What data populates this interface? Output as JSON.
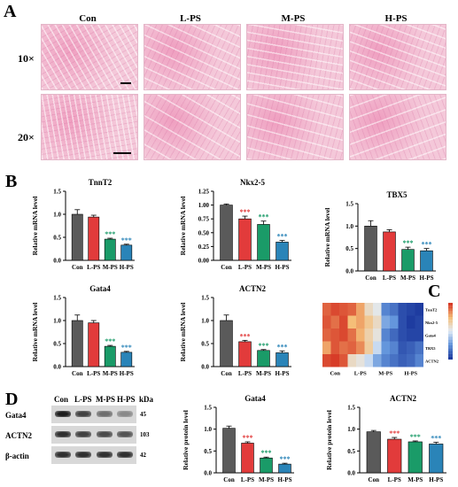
{
  "panel_labels": {
    "a": "A",
    "b": "B",
    "c": "C",
    "d": "D"
  },
  "panelA": {
    "groups": [
      "Con",
      "L-PS",
      "M-PS",
      "H-PS"
    ],
    "rows": [
      "10×",
      "20×"
    ]
  },
  "colors": {
    "Con": "#5a5a5a",
    "L-PS": "#e23b3b",
    "M-PS": "#1a9b68",
    "H-PS": "#2a84b8"
  },
  "significance": "***",
  "chart_data": [
    {
      "type": "bar",
      "title": "TnnT2",
      "ylabel": "Relative mRNA level",
      "categories": [
        "Con",
        "L-PS",
        "M-PS",
        "H-PS"
      ],
      "values": [
        1.0,
        0.94,
        0.46,
        0.33
      ],
      "errors": [
        0.1,
        0.04,
        0.02,
        0.02
      ],
      "sig": [
        "",
        "",
        "***",
        "***"
      ],
      "ylim": [
        0,
        1.5
      ],
      "yticks": [
        "0.0",
        "0.5",
        "1.0",
        "1.5"
      ]
    },
    {
      "type": "bar",
      "title": "Nkx2-5",
      "ylabel": "Relative mRNA level",
      "categories": [
        "Con",
        "L-PS",
        "M-PS",
        "H-PS"
      ],
      "values": [
        1.0,
        0.75,
        0.65,
        0.33
      ],
      "errors": [
        0.02,
        0.05,
        0.06,
        0.03
      ],
      "sig": [
        "",
        "***",
        "***",
        "***"
      ],
      "ylim": [
        0,
        1.25
      ],
      "yticks": [
        "0.00",
        "0.25",
        "0.50",
        "0.75",
        "1.00",
        "1.25"
      ]
    },
    {
      "type": "bar",
      "title": "TBX5",
      "ylabel": "Relative mRNA level",
      "categories": [
        "Con",
        "L-PS",
        "M-PS",
        "H-PS"
      ],
      "values": [
        1.0,
        0.87,
        0.48,
        0.45
      ],
      "errors": [
        0.12,
        0.05,
        0.05,
        0.05
      ],
      "sig": [
        "",
        "",
        "***",
        "***"
      ],
      "ylim": [
        0,
        1.5
      ],
      "yticks": [
        "0.0",
        "0.5",
        "1.0",
        "1.5"
      ]
    },
    {
      "type": "bar",
      "title": "Gata4",
      "ylabel": "Relative mRNA level",
      "categories": [
        "Con",
        "L-PS",
        "M-PS",
        "H-PS"
      ],
      "values": [
        1.0,
        0.95,
        0.44,
        0.31
      ],
      "errors": [
        0.12,
        0.05,
        0.02,
        0.02
      ],
      "sig": [
        "",
        "",
        "***",
        "***"
      ],
      "ylim": [
        0,
        1.5
      ],
      "yticks": [
        "0.0",
        "0.5",
        "1.0",
        "1.5"
      ]
    },
    {
      "type": "bar",
      "title": "ACTN2",
      "ylabel": "Relative mRNA level",
      "categories": [
        "Con",
        "L-PS",
        "M-PS",
        "H-PS"
      ],
      "values": [
        1.0,
        0.54,
        0.35,
        0.3
      ],
      "errors": [
        0.12,
        0.03,
        0.02,
        0.04
      ],
      "sig": [
        "",
        "***",
        "***",
        "***"
      ],
      "ylim": [
        0,
        1.5
      ],
      "yticks": [
        "0.0",
        "0.5",
        "1.0",
        "1.5"
      ]
    },
    {
      "type": "bar",
      "title": "Gata4",
      "ylabel": "Relative protein level",
      "categories": [
        "Con",
        "L-PS",
        "M-PS",
        "H-PS"
      ],
      "values": [
        1.02,
        0.68,
        0.34,
        0.2
      ],
      "errors": [
        0.05,
        0.03,
        0.02,
        0.02
      ],
      "sig": [
        "",
        "***",
        "***",
        "***"
      ],
      "ylim": [
        0,
        1.5
      ],
      "yticks": [
        "0.0",
        "0.5",
        "1.0",
        "1.5"
      ]
    },
    {
      "type": "bar",
      "title": "ACTN2",
      "ylabel": "Relative protein level",
      "categories": [
        "Con",
        "L-PS",
        "M-PS",
        "H-PS"
      ],
      "values": [
        0.94,
        0.77,
        0.71,
        0.66
      ],
      "errors": [
        0.03,
        0.04,
        0.02,
        0.04
      ],
      "sig": [
        "",
        "***",
        "***",
        "***"
      ],
      "ylim": [
        0,
        1.5
      ],
      "yticks": [
        "0.0",
        "0.5",
        "1.0",
        "1.5"
      ]
    },
    {
      "type": "heatmap",
      "rows": [
        "TnnT2",
        "Nkx2-5",
        "Gata4",
        "TBX5",
        "ACTN2"
      ],
      "x_labels": [
        "Con",
        "L-PS",
        "M-PS",
        "H-PS"
      ],
      "values": [
        [
          0.85,
          0.95,
          0.9,
          0.85,
          0.6,
          0.2,
          0.05,
          -0.6,
          -0.7,
          -0.9,
          -0.95,
          -1.0
        ],
        [
          0.9,
          0.8,
          0.95,
          0.5,
          0.6,
          0.4,
          0.2,
          -0.4,
          -0.5,
          -0.9,
          -1.0,
          -0.95
        ],
        [
          0.85,
          0.9,
          0.95,
          0.8,
          0.55,
          0.3,
          0.1,
          -0.6,
          -0.75,
          -0.9,
          -0.95,
          -0.95
        ],
        [
          0.6,
          0.9,
          0.8,
          0.85,
          0.7,
          0.35,
          -0.1,
          -0.5,
          -0.6,
          -0.85,
          -0.8,
          -0.7
        ],
        [
          0.95,
          1.0,
          0.9,
          0.2,
          0.1,
          -0.1,
          -0.4,
          -0.6,
          -0.7,
          -0.8,
          -0.75,
          -0.6
        ]
      ]
    }
  ],
  "blot": {
    "lanes": [
      "Con",
      "L-PS",
      "M-PS",
      "H-PS"
    ],
    "kda_header": "kDa",
    "proteins": [
      {
        "name": "Gata4",
        "kda": "45",
        "intensity": [
          0.95,
          0.75,
          0.5,
          0.35
        ]
      },
      {
        "name": "ACTN2",
        "kda": "103",
        "intensity": [
          0.85,
          0.75,
          0.7,
          0.65
        ]
      },
      {
        "name": "β-actin",
        "kda": "42",
        "intensity": [
          0.85,
          0.85,
          0.85,
          0.85
        ]
      }
    ]
  }
}
